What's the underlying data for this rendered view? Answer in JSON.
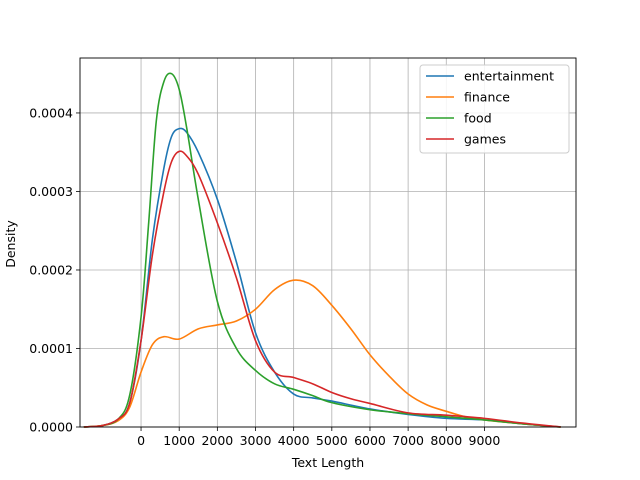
{
  "chart_data": {
    "type": "line",
    "title": "",
    "xlabel": "Text Length",
    "ylabel": "Density",
    "xlim": [
      -1600,
      11400
    ],
    "ylim": [
      0,
      0.00047
    ],
    "grid": true,
    "legend_position": "top-right",
    "xticks": [
      0,
      1000,
      2000,
      3000,
      4000,
      5000,
      6000,
      7000,
      8000,
      9000
    ],
    "xtick_labels": [
      "0",
      "1000",
      "2000",
      "3000",
      "4000",
      "5000",
      "6000",
      "7000",
      "8000",
      "9000"
    ],
    "yticks": [
      0,
      0.0001,
      0.0002,
      0.0003,
      0.0004
    ],
    "ytick_labels": [
      "0.0000",
      "0.0001",
      "0.0002",
      "0.0003",
      "0.0004"
    ],
    "series": [
      {
        "name": "entertainment",
        "color": "#1f77b4",
        "x": [
          -1500,
          -1000,
          -600,
          -300,
          0,
          300,
          600,
          800,
          1000,
          1200,
          1500,
          2000,
          2500,
          3000,
          3500,
          4000,
          4500,
          5000,
          6000,
          7000,
          8000,
          9000,
          10000,
          11000
        ],
        "y": [
          0,
          2e-06,
          1e-05,
          3e-05,
          0.00011,
          0.00024,
          0.00033,
          0.00037,
          0.00038,
          0.000375,
          0.00035,
          0.00029,
          0.00021,
          0.00012,
          7e-05,
          4.2e-05,
          3.7e-05,
          3.3e-05,
          2.3e-05,
          1.6e-05,
          1.1e-05,
          9e-06,
          4e-06,
          0
        ]
      },
      {
        "name": "finance",
        "color": "#ff7f0e",
        "x": [
          -1500,
          -1000,
          -600,
          -300,
          0,
          300,
          600,
          1000,
          1500,
          2000,
          2500,
          3000,
          3500,
          4000,
          4500,
          5000,
          5500,
          6000,
          6500,
          7000,
          7500,
          8000,
          8500,
          9000,
          10000,
          11000
        ],
        "y": [
          0,
          2e-06,
          8e-06,
          2.5e-05,
          7e-05,
          0.000105,
          0.000115,
          0.000112,
          0.000125,
          0.00013,
          0.000135,
          0.00015,
          0.000175,
          0.000187,
          0.00018,
          0.000155,
          0.000125,
          9.2e-05,
          6.5e-05,
          4.2e-05,
          2.8e-05,
          2e-05,
          1.3e-05,
          9e-06,
          4e-06,
          0
        ]
      },
      {
        "name": "food",
        "color": "#2ca02c",
        "x": [
          -1500,
          -1000,
          -600,
          -300,
          0,
          200,
          400,
          600,
          800,
          1000,
          1200,
          1500,
          2000,
          2500,
          3000,
          3500,
          4000,
          4500,
          5000,
          6000,
          7000,
          8000,
          9000,
          10000,
          11000
        ],
        "y": [
          0,
          2e-06,
          1e-05,
          4e-05,
          0.00014,
          0.00026,
          0.00039,
          0.00044,
          0.00045,
          0.00043,
          0.00038,
          0.00029,
          0.00016,
          0.0001,
          7.2e-05,
          5.5e-05,
          4.8e-05,
          4e-05,
          3.1e-05,
          2.2e-05,
          1.7e-05,
          1.3e-05,
          9e-06,
          4e-06,
          0
        ]
      },
      {
        "name": "games",
        "color": "#d62728",
        "x": [
          -1500,
          -1000,
          -600,
          -300,
          0,
          300,
          600,
          800,
          1000,
          1200,
          1500,
          2000,
          2500,
          3000,
          3500,
          4000,
          4500,
          5000,
          5500,
          6000,
          7000,
          8000,
          9000,
          10000,
          11000
        ],
        "y": [
          0,
          2e-06,
          1e-05,
          3e-05,
          0.00011,
          0.00022,
          0.0003,
          0.000338,
          0.000351,
          0.000345,
          0.000322,
          0.00026,
          0.00019,
          0.00011,
          7e-05,
          6.3e-05,
          5.5e-05,
          4.4e-05,
          3.6e-05,
          3e-05,
          1.8e-05,
          1.5e-05,
          1.1e-05,
          5e-06,
          0
        ]
      }
    ]
  }
}
